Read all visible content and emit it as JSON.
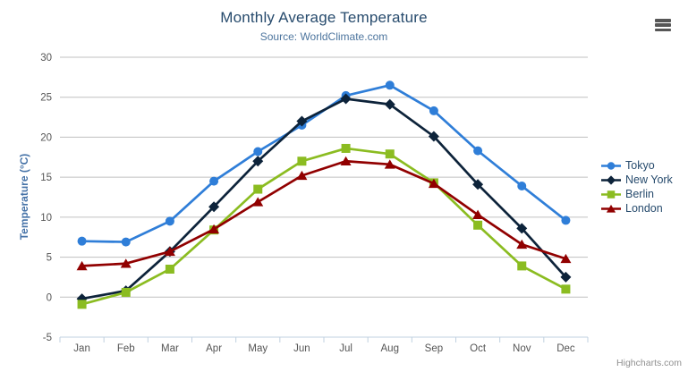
{
  "header": {
    "title": "Monthly Average Temperature",
    "subtitle": "Source: WorldClimate.com"
  },
  "export_menu": {
    "icon": "hamburger-icon"
  },
  "credits": {
    "label": "Highcharts.com"
  },
  "chart_data": {
    "type": "line",
    "title": "Monthly Average Temperature",
    "subtitle": "Source: WorldClimate.com",
    "xlabel": "",
    "ylabel": "Temperature (°C)",
    "ylim": [
      -5,
      30
    ],
    "y_ticks": [
      -5,
      0,
      5,
      10,
      15,
      20,
      25,
      30
    ],
    "grid": true,
    "legend_position": "right",
    "categories": [
      "Jan",
      "Feb",
      "Mar",
      "Apr",
      "May",
      "Jun",
      "Jul",
      "Aug",
      "Sep",
      "Oct",
      "Nov",
      "Dec"
    ],
    "series": [
      {
        "name": "Tokyo",
        "color": "#2f7ed8",
        "marker": "circle",
        "values": [
          7.0,
          6.9,
          9.5,
          14.5,
          18.2,
          21.5,
          25.2,
          26.5,
          23.3,
          18.3,
          13.9,
          9.6
        ]
      },
      {
        "name": "New York",
        "color": "#0d233a",
        "marker": "diamond",
        "values": [
          -0.2,
          0.8,
          5.7,
          11.3,
          17.0,
          22.0,
          24.8,
          24.1,
          20.1,
          14.1,
          8.6,
          2.5
        ]
      },
      {
        "name": "Berlin",
        "color": "#8bbc21",
        "marker": "square",
        "values": [
          -0.9,
          0.6,
          3.5,
          8.4,
          13.5,
          17.0,
          18.6,
          17.9,
          14.3,
          9.0,
          3.9,
          1.0
        ]
      },
      {
        "name": "London",
        "color": "#910000",
        "marker": "triangle",
        "values": [
          3.9,
          4.2,
          5.7,
          8.5,
          11.9,
          15.2,
          17.0,
          16.6,
          14.2,
          10.3,
          6.6,
          4.8
        ]
      }
    ]
  }
}
